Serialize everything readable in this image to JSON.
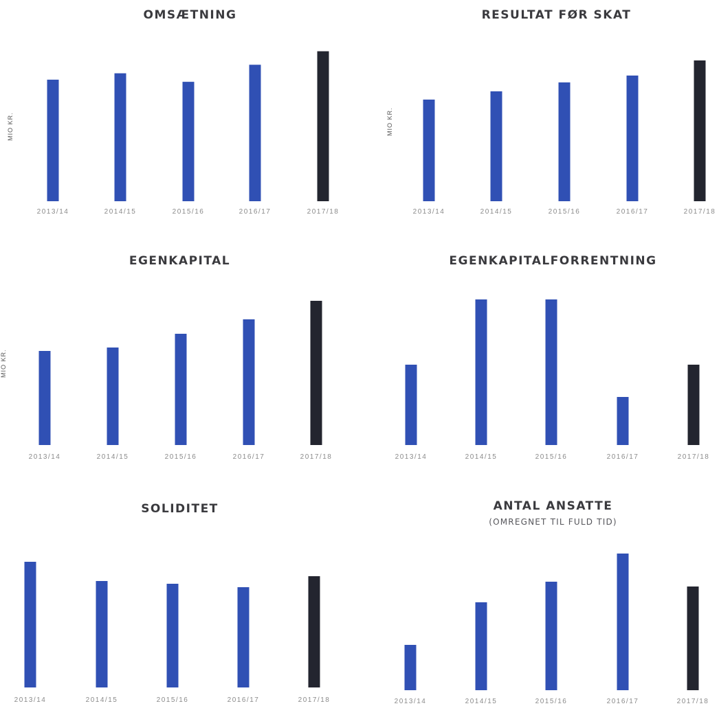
{
  "colors": {
    "bar": "#3050b4",
    "bar_latest": "#23252f",
    "tick": "#8a8a8a",
    "value": "#c4c4c4"
  },
  "chart_data": [
    {
      "type": "bar",
      "title": "OMSÆTNING",
      "subtitle": "",
      "ylabel": "MIO KR.",
      "categories": [
        "2013/14",
        "2014/15",
        "2015/16",
        "2016/17",
        "2017/18"
      ],
      "values": [
        171,
        180,
        168,
        192,
        211
      ],
      "value_labels": [
        "",
        "",
        "",
        "",
        ""
      ],
      "ylim": [
        0,
        230
      ]
    },
    {
      "type": "bar",
      "title": "RESULTAT FØR SKAT",
      "subtitle": "",
      "ylabel": "MIO KR.",
      "categories": [
        "2013/14",
        "2014/15",
        "2015/16",
        "2016/17",
        "2017/18"
      ],
      "values": [
        148,
        160,
        173,
        183,
        205
      ],
      "value_labels": [
        "",
        "",
        "",
        "",
        ""
      ],
      "ylim": [
        0,
        230
      ]
    },
    {
      "type": "bar",
      "title": "EGENKAPITAL",
      "subtitle": "",
      "ylabel": "MIO KR.",
      "categories": [
        "2013/14",
        "2014/15",
        "2015/16",
        "2016/17",
        "2017/18"
      ],
      "values": [
        137,
        142,
        162,
        183,
        210
      ],
      "value_labels": [
        "",
        "",
        "",
        "",
        ""
      ],
      "ylim": [
        0,
        240
      ]
    },
    {
      "type": "bar",
      "title": "EGENKAPITALFORRENTNING",
      "subtitle": "",
      "ylabel": "",
      "categories": [
        "2013/14",
        "2014/15",
        "2015/16",
        "2016/17",
        "2017/18"
      ],
      "values": [
        117,
        212,
        212,
        70,
        117
      ],
      "value_labels": [
        "",
        "",
        "",
        "",
        ""
      ],
      "ylim": [
        0,
        240
      ]
    },
    {
      "type": "bar",
      "title": "SOLIDITET",
      "subtitle": "",
      "ylabel": "",
      "categories": [
        "2013/14",
        "2014/15",
        "2015/16",
        "2016/17",
        "2017/18"
      ],
      "values": [
        183,
        155,
        151,
        146,
        162
      ],
      "value_labels": [
        "",
        "",
        "",
        "",
        ""
      ],
      "ylim": [
        0,
        210
      ]
    },
    {
      "type": "bar",
      "title": "ANTAL ANSATTE",
      "subtitle": "(OMREGNET TIL FULD TID)",
      "ylabel": "",
      "categories": [
        "2013/14",
        "2014/15",
        "2015/16",
        "2016/17",
        "2017/18"
      ],
      "values": [
        66,
        128,
        158,
        199,
        151
      ],
      "value_labels": [
        "",
        "",
        "",
        "",
        ""
      ],
      "ylim": [
        0,
        230
      ]
    }
  ]
}
